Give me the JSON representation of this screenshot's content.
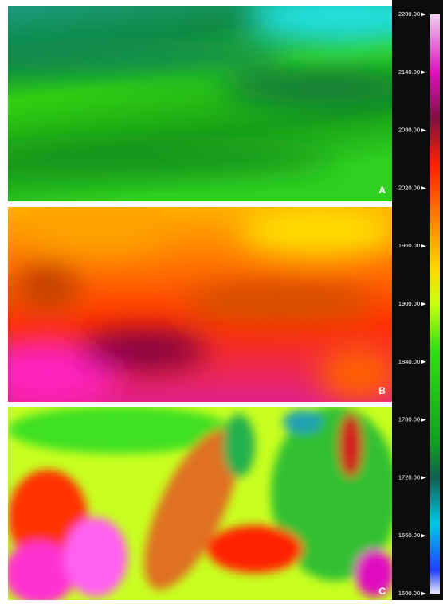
{
  "panels": [
    {
      "label": "A"
    },
    {
      "label": "B"
    },
    {
      "label": "C"
    }
  ],
  "colorbar": {
    "lim": [
      1600,
      2200
    ],
    "ticks": [
      {
        "value": 2200,
        "label": "2200.00"
      },
      {
        "value": 2140,
        "label": "2140.00"
      },
      {
        "value": 2080,
        "label": "2080.00"
      },
      {
        "value": 2020,
        "label": "2020.00"
      },
      {
        "value": 1960,
        "label": "1960.00"
      },
      {
        "value": 1900,
        "label": "1900.00"
      },
      {
        "value": 1840,
        "label": "1840.00"
      },
      {
        "value": 1780,
        "label": "1780.00"
      },
      {
        "value": 1720,
        "label": "1720.00"
      },
      {
        "value": 1660,
        "label": "1660.00"
      },
      {
        "value": 1600,
        "label": "1600.00"
      }
    ]
  }
}
